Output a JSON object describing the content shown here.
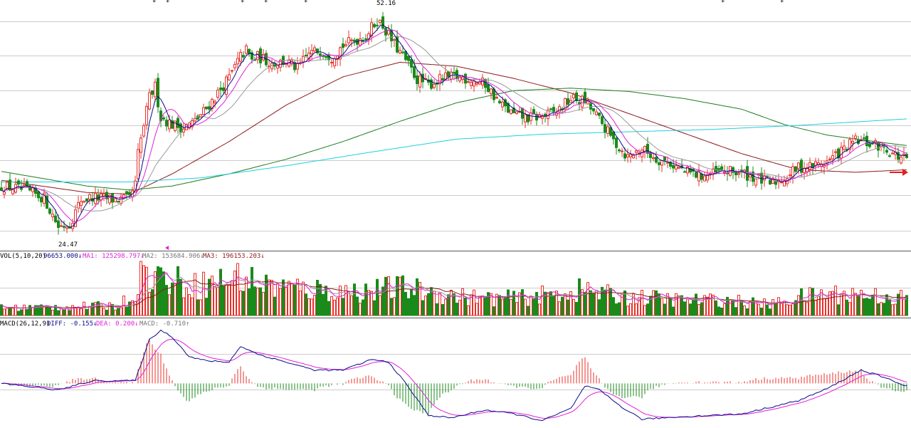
{
  "chart_data": {
    "type": "candlestick",
    "colors": {
      "up": "#e8302a",
      "down": "#1a8a1a",
      "ma_fast": "#0a0a8c",
      "ma_mid": "#e020d8",
      "ma_slow": "#9a9a9a",
      "ma_long": "#8b1a1a",
      "ma_longer": "#1e7d1e",
      "ma_longest": "#1ecfe0",
      "arrow": "#e02020",
      "grid": "#cccccc"
    },
    "price_panel": {
      "ylim": [
        22,
        53
      ],
      "high_label": "52.16",
      "low_label": "24.47",
      "ohlc_keypoints": [
        [
          0,
          30.0
        ],
        [
          8,
          29.5
        ],
        [
          15,
          28.5
        ],
        [
          20,
          25.0
        ],
        [
          24,
          25.3
        ],
        [
          28,
          28.3
        ],
        [
          32,
          28.6
        ],
        [
          40,
          28.3
        ],
        [
          45,
          28.4
        ],
        [
          47,
          30.2
        ],
        [
          48,
          34.0
        ],
        [
          50,
          37.5
        ],
        [
          52,
          41.0
        ],
        [
          54,
          42.3
        ],
        [
          56,
          38.5
        ],
        [
          60,
          37.6
        ],
        [
          64,
          37.2
        ],
        [
          68,
          38.0
        ],
        [
          72,
          39.6
        ],
        [
          76,
          41.5
        ],
        [
          80,
          43.4
        ],
        [
          84,
          46.0
        ],
        [
          86,
          46.8
        ],
        [
          88,
          45.5
        ],
        [
          90,
          46.0
        ],
        [
          95,
          45.2
        ],
        [
          100,
          45.4
        ],
        [
          104,
          44.5
        ],
        [
          108,
          46.4
        ],
        [
          112,
          46.8
        ],
        [
          116,
          46.0
        ],
        [
          120,
          47.4
        ],
        [
          124,
          48.0
        ],
        [
          128,
          48.6
        ],
        [
          132,
          50.5
        ],
        [
          134,
          49.8
        ],
        [
          138,
          47.5
        ],
        [
          142,
          45.5
        ],
        [
          146,
          43.2
        ],
        [
          150,
          42.5
        ],
        [
          155,
          43.3
        ],
        [
          160,
          43.5
        ],
        [
          165,
          43.2
        ],
        [
          170,
          42.6
        ],
        [
          175,
          40.2
        ],
        [
          180,
          38.8
        ],
        [
          185,
          38.4
        ],
        [
          190,
          38.6
        ],
        [
          195,
          39.2
        ],
        [
          200,
          40.8
        ],
        [
          205,
          40.5
        ],
        [
          210,
          38.2
        ],
        [
          215,
          35.6
        ],
        [
          220,
          33.6
        ],
        [
          225,
          34.6
        ],
        [
          230,
          33.4
        ],
        [
          235,
          32.8
        ],
        [
          240,
          31.8
        ],
        [
          245,
          31.3
        ],
        [
          250,
          31.5
        ],
        [
          255,
          31.8
        ],
        [
          260,
          31.6
        ],
        [
          265,
          31.0
        ],
        [
          270,
          30.3
        ],
        [
          275,
          31.0
        ],
        [
          280,
          32.3
        ],
        [
          285,
          32.5
        ],
        [
          290,
          33.0
        ],
        [
          295,
          34.3
        ],
        [
          300,
          35.6
        ],
        [
          305,
          35.2
        ],
        [
          310,
          34.8
        ],
        [
          315,
          33.6
        ],
        [
          318,
          33.3
        ]
      ],
      "moving_averages": [
        {
          "key": "ma_long",
          "keypoints": [
            [
              0,
              30.7
            ],
            [
              30,
              29.2
            ],
            [
              45,
              29.0
            ],
            [
              60,
              31.5
            ],
            [
              80,
              35.5
            ],
            [
              100,
              40.0
            ],
            [
              120,
              43.5
            ],
            [
              140,
              45.3
            ],
            [
              160,
              44.8
            ],
            [
              180,
              43.3
            ],
            [
              200,
              41.5
            ],
            [
              220,
              39.0
            ],
            [
              240,
              36.5
            ],
            [
              260,
              34.0
            ],
            [
              280,
              32.0
            ],
            [
              300,
              31.7
            ],
            [
              318,
              32.0
            ]
          ]
        },
        {
          "key": "ma_longer",
          "keypoints": [
            [
              0,
              31.8
            ],
            [
              30,
              30.0
            ],
            [
              45,
              29.5
            ],
            [
              60,
              30.0
            ],
            [
              80,
              31.5
            ],
            [
              100,
              33.3
            ],
            [
              120,
              35.5
            ],
            [
              140,
              38.0
            ],
            [
              160,
              40.3
            ],
            [
              180,
              41.8
            ],
            [
              200,
              42.1
            ],
            [
              220,
              41.7
            ],
            [
              240,
              40.8
            ],
            [
              260,
              39.5
            ],
            [
              275,
              37.6
            ],
            [
              290,
              36.3
            ],
            [
              300,
              35.8
            ],
            [
              318,
              35.0
            ]
          ]
        },
        {
          "key": "ma_longest",
          "keypoints": [
            [
              0,
              30.5
            ],
            [
              45,
              30.5
            ],
            [
              70,
              31.0
            ],
            [
              100,
              32.5
            ],
            [
              130,
              34.2
            ],
            [
              160,
              35.8
            ],
            [
              190,
              36.4
            ],
            [
              220,
              36.7
            ],
            [
              250,
              37.0
            ],
            [
              280,
              37.5
            ],
            [
              318,
              38.3
            ]
          ]
        }
      ]
    },
    "volume_panel": {
      "ylim": [
        0,
        260000
      ],
      "legend": {
        "prefix": "VOL(5,10,20)",
        "vol_text": "96653.000↓",
        "ma1_text": "MA1: 125298.797↓",
        "ma2_text": "MA2: 153684.906↓",
        "ma3_text": "MA3: 196153.203↓"
      },
      "volume_keypoints": [
        [
          0,
          35000
        ],
        [
          20,
          40000
        ],
        [
          40,
          45000
        ],
        [
          46,
          80000
        ],
        [
          48,
          180000
        ],
        [
          52,
          200000
        ],
        [
          60,
          160000
        ],
        [
          70,
          140000
        ],
        [
          84,
          180000
        ],
        [
          90,
          150000
        ],
        [
          100,
          130000
        ],
        [
          110,
          120000
        ],
        [
          120,
          110000
        ],
        [
          130,
          115000
        ],
        [
          140,
          130000
        ],
        [
          150,
          110000
        ],
        [
          160,
          90000
        ],
        [
          170,
          80000
        ],
        [
          180,
          80000
        ],
        [
          195,
          100000
        ],
        [
          205,
          120000
        ],
        [
          215,
          90000
        ],
        [
          230,
          80000
        ],
        [
          240,
          70000
        ],
        [
          255,
          70000
        ],
        [
          270,
          50000
        ],
        [
          278,
          80000
        ],
        [
          290,
          100000
        ],
        [
          300,
          100000
        ],
        [
          318,
          80000
        ]
      ]
    },
    "macd_panel": {
      "ylim": [
        -3.2,
        4.2
      ],
      "legend": {
        "prefix": "MACD(26,12,9)",
        "diff_text": "DIFF: -0.155↓",
        "dea_text": "DEA: 0.200↓",
        "macd_text": "MACD: -0.710↑"
      },
      "diff_keypoints": [
        [
          0,
          0.0
        ],
        [
          20,
          -0.5
        ],
        [
          32,
          0.2
        ],
        [
          40,
          0.2
        ],
        [
          47,
          0.2
        ],
        [
          52,
          3.3
        ],
        [
          56,
          4.0
        ],
        [
          60,
          3.5
        ],
        [
          66,
          2.0
        ],
        [
          72,
          1.7
        ],
        [
          80,
          1.6
        ],
        [
          84,
          2.8
        ],
        [
          90,
          2.2
        ],
        [
          100,
          1.6
        ],
        [
          110,
          1.0
        ],
        [
          120,
          1.0
        ],
        [
          130,
          1.8
        ],
        [
          136,
          1.6
        ],
        [
          142,
          0.0
        ],
        [
          150,
          -2.4
        ],
        [
          158,
          -2.6
        ],
        [
          170,
          -2.0
        ],
        [
          180,
          -2.3
        ],
        [
          190,
          -2.8
        ],
        [
          200,
          -1.9
        ],
        [
          205,
          -0.2
        ],
        [
          210,
          -0.5
        ],
        [
          218,
          -1.8
        ],
        [
          225,
          -2.7
        ],
        [
          240,
          -2.5
        ],
        [
          260,
          -2.3
        ],
        [
          280,
          -1.3
        ],
        [
          290,
          -0.4
        ],
        [
          302,
          1.0
        ],
        [
          308,
          0.6
        ],
        [
          318,
          -0.2
        ]
      ]
    }
  }
}
